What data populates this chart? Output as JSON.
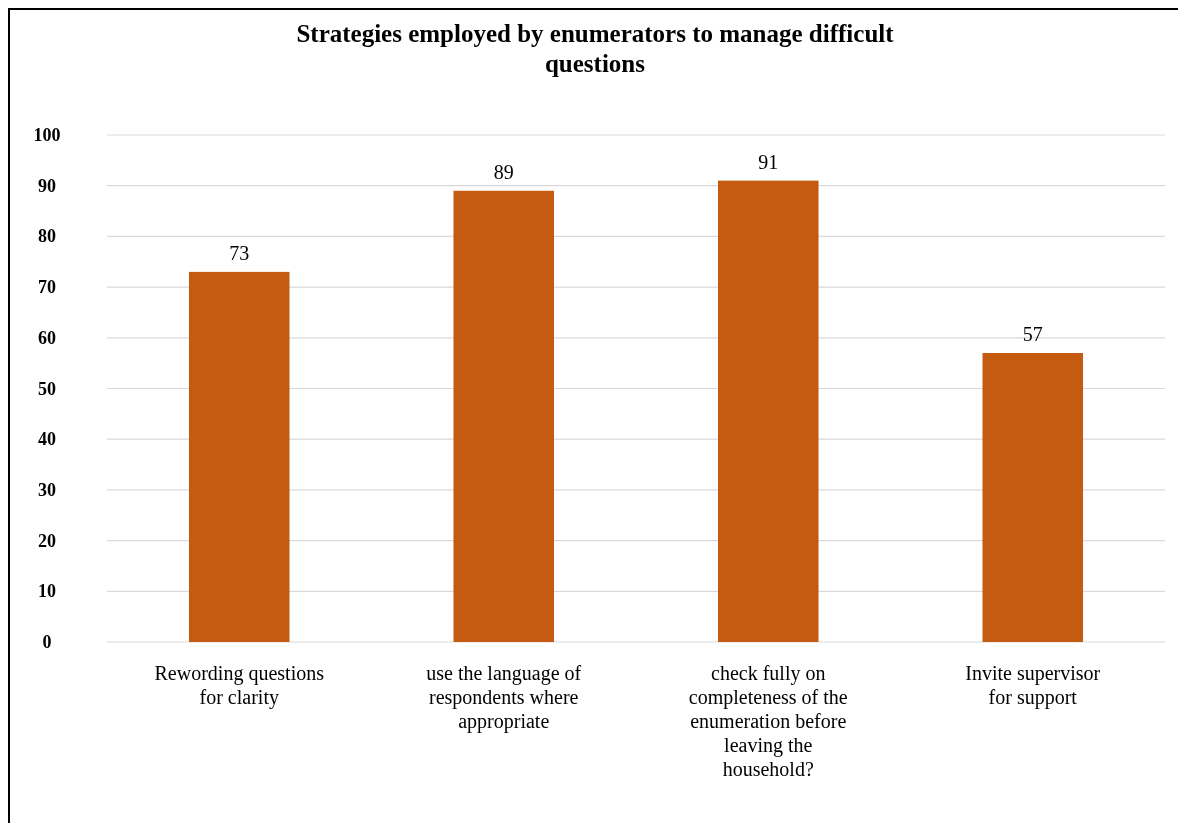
{
  "chart_data": {
    "type": "bar",
    "title": "Strategies employed by enumerators to manage difficult questions",
    "categories": [
      "Rewording questions for clarity",
      "use the language of respondents where appropriate",
      "check fully on completeness of the enumeration before leaving the household?",
      "Invite supervisor for support"
    ],
    "values": [
      73,
      89,
      91,
      57
    ],
    "color": "#c55a11",
    "data_labels": true,
    "ylim": [
      0,
      100
    ],
    "yticks": [
      0,
      10,
      20,
      30,
      40,
      50,
      60,
      70,
      80,
      90,
      100
    ],
    "grid": "y"
  }
}
